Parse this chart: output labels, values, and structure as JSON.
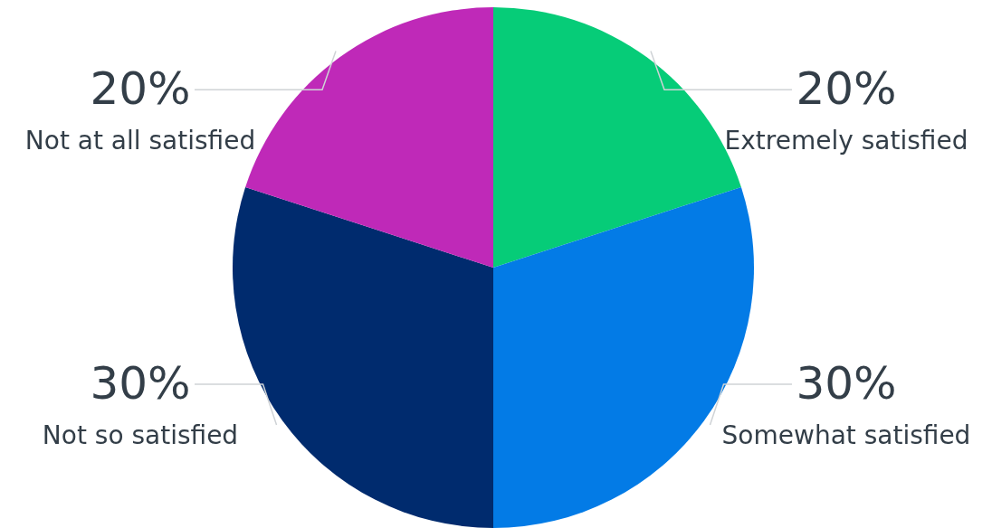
{
  "chart_data": {
    "type": "pie",
    "categories": [
      "Extremely satisfied",
      "Somewhat satisfied",
      "Not so satisfied",
      "Not at all satisfied"
    ],
    "values": [
      20,
      30,
      30,
      20
    ],
    "value_labels": [
      "20%",
      "30%",
      "30%",
      "20%"
    ],
    "colors": [
      "#06cc78",
      "#037be6",
      "#002b6e",
      "#bf29b8"
    ]
  }
}
